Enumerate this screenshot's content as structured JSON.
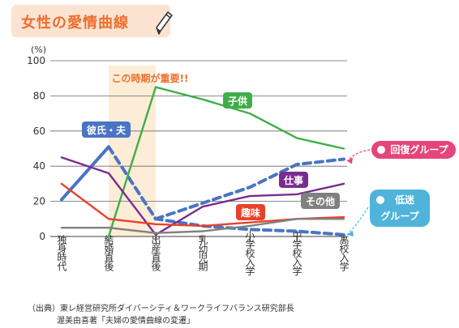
{
  "title": "女性の愛情曲線",
  "source_line1": "（出典）東レ経営研究所ダイバーシティ＆ワークライフバランス研究部長",
  "source_line2": "渥美由喜著「夫婦の愛情曲線の変遷」",
  "chart_data": {
    "type": "line",
    "unit_label": "(%)",
    "ylim": [
      0,
      100
    ],
    "yticks": [
      0,
      20,
      40,
      60,
      80,
      100
    ],
    "categories": [
      "独身時代",
      "結婚直後",
      "出産直後",
      "乳幼児期",
      "小学校入学",
      "中学校入学",
      "高校入学"
    ],
    "highlight": {
      "from": 1,
      "to": 2,
      "label": "この時期が重要!!",
      "color": "#fdecd6",
      "label_color": "#ee6f2d"
    },
    "series": [
      {
        "name": "彼氏・夫",
        "color": "#4a74c4",
        "style": "solid-then-dashed",
        "values": [
          21,
          51,
          10,
          6,
          4,
          3,
          1
        ],
        "x": [
          0,
          1,
          2,
          3,
          4,
          5,
          6
        ]
      },
      {
        "name": "子供",
        "color": "#3fae49",
        "style": "solid",
        "values": [
          0,
          85,
          78,
          70,
          56,
          50
        ],
        "x": [
          1,
          2,
          3,
          4,
          5,
          6
        ]
      },
      {
        "name": "仕事",
        "color": "#7a2c8e",
        "style": "solid",
        "values": [
          45,
          36,
          1,
          17,
          23,
          24,
          30
        ],
        "x": [
          0,
          1,
          2,
          3,
          4,
          5,
          6
        ]
      },
      {
        "name": "趣味",
        "color": "#e8412a",
        "style": "solid",
        "values": [
          30,
          10,
          7,
          6,
          8,
          10,
          11
        ],
        "x": [
          0,
          1,
          2,
          3,
          4,
          5,
          6
        ]
      },
      {
        "name": "その他",
        "color": "#808080",
        "style": "solid",
        "values": [
          5,
          5,
          2,
          3,
          6,
          10,
          10
        ],
        "x": [
          0,
          1,
          2,
          3,
          4,
          5,
          6
        ]
      },
      {
        "name": "回復グループ",
        "color": "#4a74c4",
        "style": "dashed",
        "values": [
          10,
          19,
          28,
          41,
          44
        ],
        "x": [
          2,
          3,
          4,
          5,
          6
        ]
      }
    ],
    "series_label_tags": [
      {
        "series": 0,
        "text": "彼氏・夫",
        "color": "#4a74c4"
      },
      {
        "series": 1,
        "text": "子供",
        "color": "#3fae49"
      },
      {
        "series": 2,
        "text": "仕事",
        "color": "#7a2c8e"
      },
      {
        "series": 3,
        "text": "趣味",
        "color": "#e8412a"
      },
      {
        "series": 4,
        "text": "その他",
        "color": "#808080"
      }
    ],
    "callouts": [
      {
        "text": "回復グループ",
        "color": "#e6457a",
        "points_to_value": 44
      },
      {
        "text": "低迷グループ",
        "color": "#4fb3dc",
        "points_to_value": 1
      }
    ]
  }
}
